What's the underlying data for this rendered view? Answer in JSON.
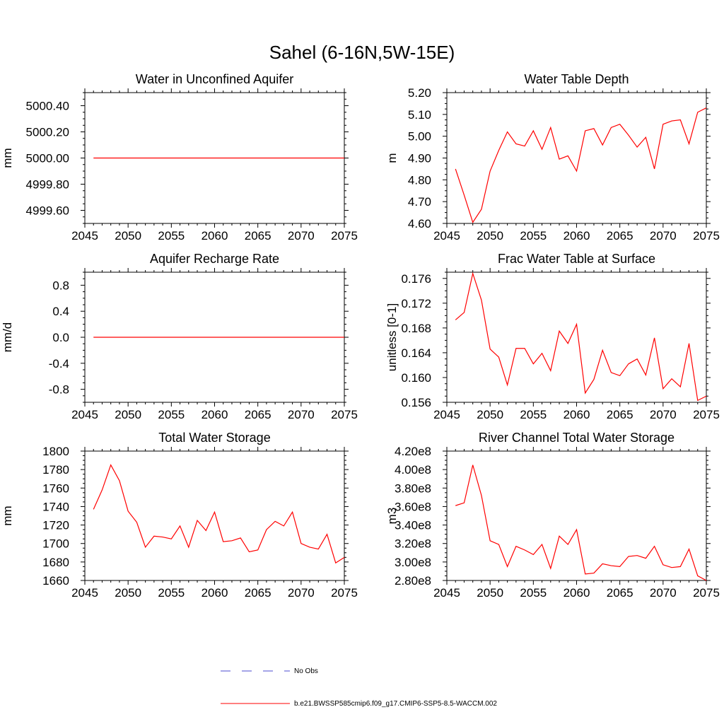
{
  "figure_title": "Sahel (6-16N,5W-15E)",
  "colors": {
    "model": "#ff0000",
    "obs": "#4b4bd0",
    "axis": "#000000"
  },
  "legend": {
    "obs_label": "No Obs",
    "model_label": "b.e21.BWSSP585cmip6.f09_g17.CMIP6-SSP5-8.5-WACCM.002"
  },
  "chart_data": [
    {
      "type": "line",
      "title": "Water in Unconfined Aquifer",
      "xlabel": "",
      "ylabel": "mm",
      "xlim": [
        2045,
        2075
      ],
      "ylim": [
        4999.5,
        5000.5
      ],
      "xticks": [
        2045,
        2050,
        2055,
        2060,
        2065,
        2070,
        2075
      ],
      "yticks": [
        4999.6,
        4999.8,
        5000.0,
        5000.2,
        5000.4
      ],
      "ytick_labels": [
        "4999.60",
        "4999.80",
        "5000.00",
        "5000.20",
        "5000.40"
      ],
      "series": [
        {
          "x": [
            2046,
            2047,
            2048,
            2049,
            2050,
            2051,
            2052,
            2053,
            2054,
            2055,
            2056,
            2057,
            2058,
            2059,
            2060,
            2061,
            2062,
            2063,
            2064,
            2065,
            2066,
            2067,
            2068,
            2069,
            2070,
            2071,
            2072,
            2073,
            2074,
            2075
          ],
          "y": [
            5000.0,
            5000.0,
            5000.0,
            5000.0,
            5000.0,
            5000.0,
            5000.0,
            5000.0,
            5000.0,
            5000.0,
            5000.0,
            5000.0,
            5000.0,
            5000.0,
            5000.0,
            5000.0,
            5000.0,
            5000.0,
            5000.0,
            5000.0,
            5000.0,
            5000.0,
            5000.0,
            5000.0,
            5000.0,
            5000.0,
            5000.0,
            5000.0,
            5000.0,
            5000.0
          ]
        }
      ]
    },
    {
      "type": "line",
      "title": "Water Table Depth",
      "xlabel": "",
      "ylabel": "m",
      "xlim": [
        2045,
        2075
      ],
      "ylim": [
        4.6,
        5.2
      ],
      "xticks": [
        2045,
        2050,
        2055,
        2060,
        2065,
        2070,
        2075
      ],
      "yticks": [
        4.6,
        4.7,
        4.8,
        4.9,
        5.0,
        5.1,
        5.2
      ],
      "ytick_labels": [
        "4.60",
        "4.70",
        "4.80",
        "4.90",
        "5.00",
        "5.10",
        "5.20"
      ],
      "series": [
        {
          "x": [
            2046,
            2047,
            2048,
            2049,
            2050,
            2051,
            2052,
            2053,
            2054,
            2055,
            2056,
            2057,
            2058,
            2059,
            2060,
            2061,
            2062,
            2063,
            2064,
            2065,
            2066,
            2067,
            2068,
            2069,
            2070,
            2071,
            2072,
            2073,
            2074,
            2075
          ],
          "y": [
            4.85,
            4.73,
            4.605,
            4.665,
            4.84,
            4.935,
            5.02,
            4.965,
            4.955,
            5.025,
            4.94,
            5.04,
            4.895,
            4.91,
            4.84,
            5.025,
            5.035,
            4.96,
            5.04,
            5.055,
            5.005,
            4.95,
            4.995,
            4.85,
            5.055,
            5.07,
            5.075,
            4.965,
            5.11,
            5.13
          ]
        }
      ]
    },
    {
      "type": "line",
      "title": "Aquifer Recharge Rate",
      "xlabel": "",
      "ylabel": "mm/d",
      "xlim": [
        2045,
        2075
      ],
      "ylim": [
        -1.0,
        1.0
      ],
      "xticks": [
        2045,
        2050,
        2055,
        2060,
        2065,
        2070,
        2075
      ],
      "yticks": [
        -0.8,
        -0.4,
        0.0,
        0.4,
        0.8
      ],
      "ytick_labels": [
        "-0.8",
        "-0.4",
        "0.0",
        "0.4",
        "0.8"
      ],
      "series": [
        {
          "x": [
            2046,
            2047,
            2048,
            2049,
            2050,
            2051,
            2052,
            2053,
            2054,
            2055,
            2056,
            2057,
            2058,
            2059,
            2060,
            2061,
            2062,
            2063,
            2064,
            2065,
            2066,
            2067,
            2068,
            2069,
            2070,
            2071,
            2072,
            2073,
            2074,
            2075
          ],
          "y": [
            0,
            0,
            0,
            0,
            0,
            0,
            0,
            0,
            0,
            0,
            0,
            0,
            0,
            0,
            0,
            0,
            0,
            0,
            0,
            0,
            0,
            0,
            0,
            0,
            0,
            0,
            0,
            0,
            0,
            0
          ]
        }
      ]
    },
    {
      "type": "line",
      "title": "Frac Water Table at Surface",
      "xlabel": "",
      "ylabel": "unitless [0-1]",
      "xlim": [
        2045,
        2075
      ],
      "ylim": [
        0.156,
        0.177
      ],
      "xticks": [
        2045,
        2050,
        2055,
        2060,
        2065,
        2070,
        2075
      ],
      "yticks": [
        0.156,
        0.16,
        0.164,
        0.168,
        0.172,
        0.176
      ],
      "ytick_labels": [
        "0.156",
        "0.160",
        "0.164",
        "0.168",
        "0.172",
        "0.176"
      ],
      "series": [
        {
          "x": [
            2046,
            2047,
            2048,
            2049,
            2050,
            2051,
            2052,
            2053,
            2054,
            2055,
            2056,
            2057,
            2058,
            2059,
            2060,
            2061,
            2062,
            2063,
            2064,
            2065,
            2066,
            2067,
            2068,
            2069,
            2070,
            2071,
            2072,
            2073,
            2074,
            2075
          ],
          "y": [
            0.1693,
            0.1705,
            0.1768,
            0.1725,
            0.1646,
            0.1633,
            0.1588,
            0.1647,
            0.1647,
            0.1622,
            0.1639,
            0.1611,
            0.1675,
            0.1655,
            0.1686,
            0.1575,
            0.1597,
            0.1644,
            0.1608,
            0.1603,
            0.1622,
            0.163,
            0.1604,
            0.1664,
            0.1582,
            0.1598,
            0.1585,
            0.1655,
            0.1563,
            0.157
          ]
        }
      ]
    },
    {
      "type": "line",
      "title": "Total Water Storage",
      "xlabel": "",
      "ylabel": "mm",
      "xlim": [
        2045,
        2075
      ],
      "ylim": [
        1660,
        1800
      ],
      "xticks": [
        2045,
        2050,
        2055,
        2060,
        2065,
        2070,
        2075
      ],
      "yticks": [
        1660,
        1680,
        1700,
        1720,
        1740,
        1760,
        1780,
        1800
      ],
      "ytick_labels": [
        "1660",
        "1680",
        "1700",
        "1720",
        "1740",
        "1760",
        "1780",
        "1800"
      ],
      "series": [
        {
          "x": [
            2046,
            2047,
            2048,
            2049,
            2050,
            2051,
            2052,
            2053,
            2054,
            2055,
            2056,
            2057,
            2058,
            2059,
            2060,
            2061,
            2062,
            2063,
            2064,
            2065,
            2066,
            2067,
            2068,
            2069,
            2070,
            2071,
            2072,
            2073,
            2074,
            2075
          ],
          "y": [
            1737,
            1758,
            1785,
            1768,
            1735,
            1723,
            1696,
            1708,
            1707,
            1705,
            1719,
            1696,
            1725,
            1714,
            1734,
            1702,
            1703,
            1706,
            1691,
            1693,
            1715,
            1724,
            1719,
            1734,
            1700,
            1696,
            1694,
            1710,
            1679,
            1685
          ]
        }
      ]
    },
    {
      "type": "line",
      "title": "River Channel Total Water Storage",
      "xlabel": "",
      "ylabel": "m3",
      "xlim": [
        2045,
        2075
      ],
      "ylim": [
        280000000,
        420000000
      ],
      "xticks": [
        2045,
        2050,
        2055,
        2060,
        2065,
        2070,
        2075
      ],
      "yticks": [
        280000000,
        300000000,
        320000000,
        340000000,
        360000000,
        380000000,
        400000000,
        420000000
      ],
      "ytick_labels": [
        "2.80e8",
        "3.00e8",
        "3.20e8",
        "3.40e8",
        "3.60e8",
        "3.80e8",
        "4.00e8",
        "4.20e8"
      ],
      "series": [
        {
          "x": [
            2046,
            2047,
            2048,
            2049,
            2050,
            2051,
            2052,
            2053,
            2054,
            2055,
            2056,
            2057,
            2058,
            2059,
            2060,
            2061,
            2062,
            2063,
            2064,
            2065,
            2066,
            2067,
            2068,
            2069,
            2070,
            2071,
            2072,
            2073,
            2074,
            2075
          ],
          "y": [
            361000000,
            364000000,
            405000000,
            372000000,
            323000000,
            319000000,
            295000000,
            317000000,
            313000000,
            308000000,
            319000000,
            293000000,
            328000000,
            319000000,
            335000000,
            287000000,
            288000000,
            298000000,
            296000000,
            295000000,
            306000000,
            307000000,
            304000000,
            317000000,
            297000000,
            294000000,
            295000000,
            314000000,
            285000000,
            280000000
          ]
        }
      ]
    }
  ]
}
